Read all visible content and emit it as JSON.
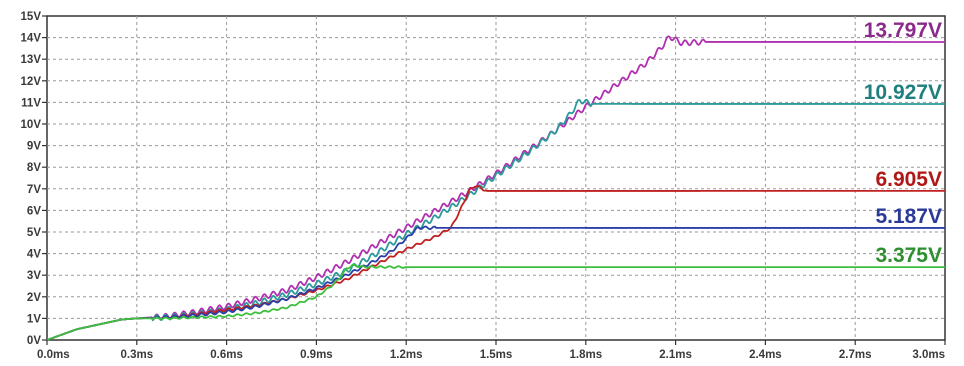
{
  "chart_data": {
    "type": "line",
    "xlabel": "",
    "ylabel": "",
    "xlim": [
      0,
      3.0
    ],
    "ylim": [
      0,
      15
    ],
    "grid": true,
    "x_ticks": [
      {
        "value": 0.0,
        "label": "0.0ms"
      },
      {
        "value": 0.3,
        "label": "0.3ms"
      },
      {
        "value": 0.6,
        "label": "0.6ms"
      },
      {
        "value": 0.9,
        "label": "0.9ms"
      },
      {
        "value": 1.2,
        "label": "1.2ms"
      },
      {
        "value": 1.5,
        "label": "1.5ms"
      },
      {
        "value": 1.8,
        "label": "1.8ms"
      },
      {
        "value": 2.1,
        "label": "2.1ms"
      },
      {
        "value": 2.4,
        "label": "2.4ms"
      },
      {
        "value": 2.7,
        "label": "2.7ms"
      },
      {
        "value": 3.0,
        "label": "3.0ms"
      }
    ],
    "y_ticks": [
      {
        "value": 0,
        "label": "0V"
      },
      {
        "value": 1,
        "label": "1V"
      },
      {
        "value": 2,
        "label": "2V"
      },
      {
        "value": 3,
        "label": "3V"
      },
      {
        "value": 4,
        "label": "4V"
      },
      {
        "value": 5,
        "label": "5V"
      },
      {
        "value": 6,
        "label": "6V"
      },
      {
        "value": 7,
        "label": "7V"
      },
      {
        "value": 8,
        "label": "8V"
      },
      {
        "value": 9,
        "label": "9V"
      },
      {
        "value": 10,
        "label": "10V"
      },
      {
        "value": 11,
        "label": "11V"
      },
      {
        "value": 12,
        "label": "12V"
      },
      {
        "value": 13,
        "label": "13V"
      },
      {
        "value": 14,
        "label": "14V"
      },
      {
        "value": 15,
        "label": "15V"
      }
    ],
    "series": [
      {
        "label": "13.797V",
        "color": "#b030b0",
        "label_color": "#8a2a8a",
        "ripple": 0.12,
        "points": [
          [
            0,
            0
          ],
          [
            0.05,
            0.25
          ],
          [
            0.1,
            0.5
          ],
          [
            0.2,
            0.8
          ],
          [
            0.25,
            0.95
          ],
          [
            0.3,
            1.0
          ],
          [
            0.4,
            1.1
          ],
          [
            0.5,
            1.3
          ],
          [
            0.6,
            1.55
          ],
          [
            0.7,
            1.9
          ],
          [
            0.8,
            2.3
          ],
          [
            0.9,
            2.9
          ],
          [
            1.0,
            3.6
          ],
          [
            1.1,
            4.4
          ],
          [
            1.2,
            5.2
          ],
          [
            1.3,
            6.0
          ],
          [
            1.4,
            6.8
          ],
          [
            1.5,
            7.7
          ],
          [
            1.6,
            8.7
          ],
          [
            1.7,
            9.7
          ],
          [
            1.8,
            10.8
          ],
          [
            1.9,
            11.8
          ],
          [
            2.0,
            12.8
          ],
          [
            2.05,
            13.5
          ],
          [
            2.08,
            14.05
          ],
          [
            2.12,
            13.75
          ],
          [
            2.2,
            13.8
          ],
          [
            2.4,
            13.8
          ],
          [
            3.0,
            13.797
          ]
        ]
      },
      {
        "label": "10.927V",
        "color": "#2a9a9a",
        "label_color": "#1f7f7f",
        "ripple": 0.12,
        "points": [
          [
            0,
            0
          ],
          [
            0.05,
            0.25
          ],
          [
            0.1,
            0.5
          ],
          [
            0.2,
            0.8
          ],
          [
            0.25,
            0.95
          ],
          [
            0.3,
            1.0
          ],
          [
            0.4,
            1.05
          ],
          [
            0.5,
            1.2
          ],
          [
            0.6,
            1.4
          ],
          [
            0.7,
            1.7
          ],
          [
            0.8,
            2.1
          ],
          [
            0.9,
            2.6
          ],
          [
            1.0,
            3.2
          ],
          [
            1.1,
            4.0
          ],
          [
            1.2,
            4.9
          ],
          [
            1.3,
            5.7
          ],
          [
            1.4,
            6.6
          ],
          [
            1.5,
            7.6
          ],
          [
            1.6,
            8.6
          ],
          [
            1.7,
            9.7
          ],
          [
            1.75,
            10.5
          ],
          [
            1.78,
            11.1
          ],
          [
            1.82,
            10.93
          ],
          [
            1.9,
            10.93
          ],
          [
            3.0,
            10.927
          ]
        ]
      },
      {
        "label": "6.905V",
        "color": "#c02020",
        "label_color": "#b01818",
        "ripple": 0.05,
        "points": [
          [
            0,
            0
          ],
          [
            0.05,
            0.25
          ],
          [
            0.1,
            0.5
          ],
          [
            0.2,
            0.8
          ],
          [
            0.25,
            0.95
          ],
          [
            0.3,
            1.0
          ],
          [
            0.4,
            1.05
          ],
          [
            0.5,
            1.2
          ],
          [
            0.6,
            1.4
          ],
          [
            0.7,
            1.6
          ],
          [
            0.8,
            1.9
          ],
          [
            0.9,
            2.3
          ],
          [
            1.0,
            2.8
          ],
          [
            1.1,
            3.5
          ],
          [
            1.2,
            4.2
          ],
          [
            1.3,
            4.8
          ],
          [
            1.35,
            5.2
          ],
          [
            1.38,
            6.0
          ],
          [
            1.41,
            6.9
          ],
          [
            1.43,
            7.15
          ],
          [
            1.47,
            6.9
          ],
          [
            1.6,
            6.9
          ],
          [
            3.0,
            6.905
          ]
        ]
      },
      {
        "label": "5.187V",
        "color": "#2b3fa8",
        "label_color": "#2b3a98",
        "ripple": 0.06,
        "points": [
          [
            0,
            0
          ],
          [
            0.05,
            0.25
          ],
          [
            0.1,
            0.5
          ],
          [
            0.2,
            0.8
          ],
          [
            0.25,
            0.95
          ],
          [
            0.3,
            1.0
          ],
          [
            0.4,
            1.05
          ],
          [
            0.5,
            1.15
          ],
          [
            0.6,
            1.3
          ],
          [
            0.7,
            1.55
          ],
          [
            0.8,
            1.9
          ],
          [
            0.9,
            2.4
          ],
          [
            1.0,
            3.0
          ],
          [
            1.1,
            3.7
          ],
          [
            1.15,
            4.1
          ],
          [
            1.2,
            4.7
          ],
          [
            1.24,
            5.2
          ],
          [
            1.3,
            5.19
          ],
          [
            3.0,
            5.187
          ]
        ]
      },
      {
        "label": "3.375V",
        "color": "#3cbf3c",
        "label_color": "#2f8f2f",
        "ripple": 0.04,
        "points": [
          [
            0,
            0
          ],
          [
            0.05,
            0.25
          ],
          [
            0.1,
            0.5
          ],
          [
            0.2,
            0.8
          ],
          [
            0.25,
            0.95
          ],
          [
            0.3,
            1.0
          ],
          [
            0.4,
            1.0
          ],
          [
            0.5,
            1.05
          ],
          [
            0.6,
            1.1
          ],
          [
            0.7,
            1.25
          ],
          [
            0.8,
            1.5
          ],
          [
            0.9,
            2.0
          ],
          [
            0.95,
            2.5
          ],
          [
            0.98,
            2.9
          ],
          [
            1.0,
            3.3
          ],
          [
            1.02,
            3.45
          ],
          [
            1.06,
            3.38
          ],
          [
            1.2,
            3.375
          ],
          [
            3.0,
            3.375
          ]
        ]
      }
    ]
  }
}
